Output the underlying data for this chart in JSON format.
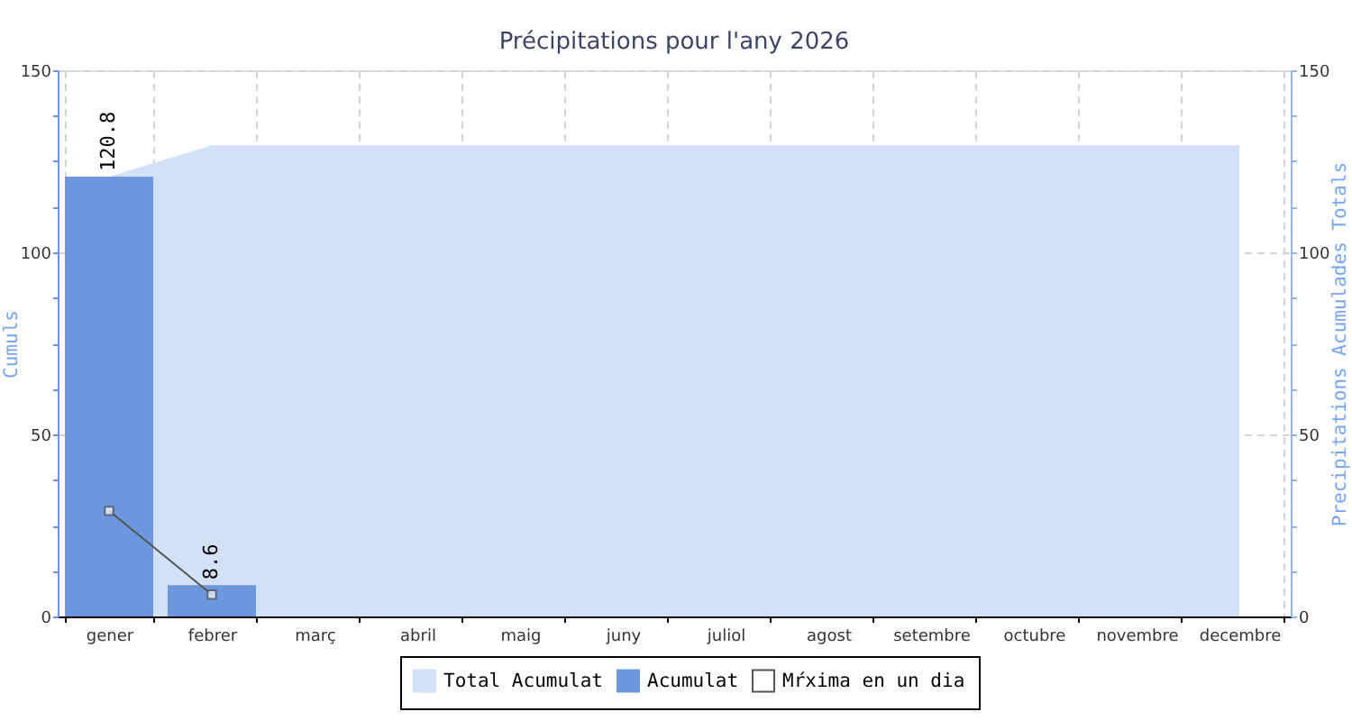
{
  "chart_data": {
    "type": "bar",
    "title": "Précipitations pour l'any 2026",
    "ylabel": "Cumuls",
    "y2label": "Precipitations Acumulades Totals",
    "categories": [
      "gener",
      "febrer",
      "març",
      "abril",
      "maig",
      "juny",
      "juliol",
      "agost",
      "setembre",
      "octubre",
      "novembre",
      "decembre"
    ],
    "series": [
      {
        "name": "Total Acumulat",
        "type": "area",
        "axis": "y2",
        "color": "#d2e0f8",
        "values": [
          120.8,
          129.4,
          129.4,
          129.4,
          129.4,
          129.4,
          129.4,
          129.4,
          129.4,
          129.4,
          129.4,
          129.4
        ]
      },
      {
        "name": "Acumulat",
        "color": "#6d97dd",
        "values": [
          120.8,
          8.6,
          null,
          null,
          null,
          null,
          null,
          null,
          null,
          null,
          null,
          null
        ],
        "value_labels": [
          "120.8",
          "8.6",
          null,
          null,
          null,
          null,
          null,
          null,
          null,
          null,
          null,
          null
        ]
      },
      {
        "name": "Mŕxima en un dia",
        "type": "line",
        "color": "#555555",
        "marker": "square",
        "values": [
          29,
          6,
          null,
          null,
          null,
          null,
          null,
          null,
          null,
          null,
          null,
          null
        ]
      }
    ],
    "ylim": [
      0,
      150
    ],
    "yticks": [
      0,
      {
        "value": 12.5,
        "label": null
      },
      {
        "value": 25,
        "label": null
      },
      {
        "value": 37.5,
        "label": null
      },
      50,
      {
        "value": 62.5,
        "label": null
      },
      {
        "value": 75,
        "label": null
      },
      {
        "value": 87.5,
        "label": null
      },
      100,
      {
        "value": 112.5,
        "label": null
      },
      {
        "value": 125,
        "label": null
      },
      {
        "value": 137.5,
        "label": null
      },
      150
    ],
    "y2lim": [
      0,
      150
    ],
    "y2ticks": [
      0,
      {
        "value": 12.5,
        "label": null
      },
      {
        "value": 25,
        "label": null
      },
      {
        "value": 37.5,
        "label": null
      },
      50,
      {
        "value": 62.5,
        "label": null
      },
      {
        "value": 75,
        "label": null
      },
      {
        "value": 87.5,
        "label": null
      },
      100,
      {
        "value": 112.5,
        "label": null
      },
      {
        "value": 125,
        "label": null
      },
      {
        "value": 137.5,
        "label": null
      },
      150
    ],
    "grid": true,
    "legend": "bottom"
  }
}
